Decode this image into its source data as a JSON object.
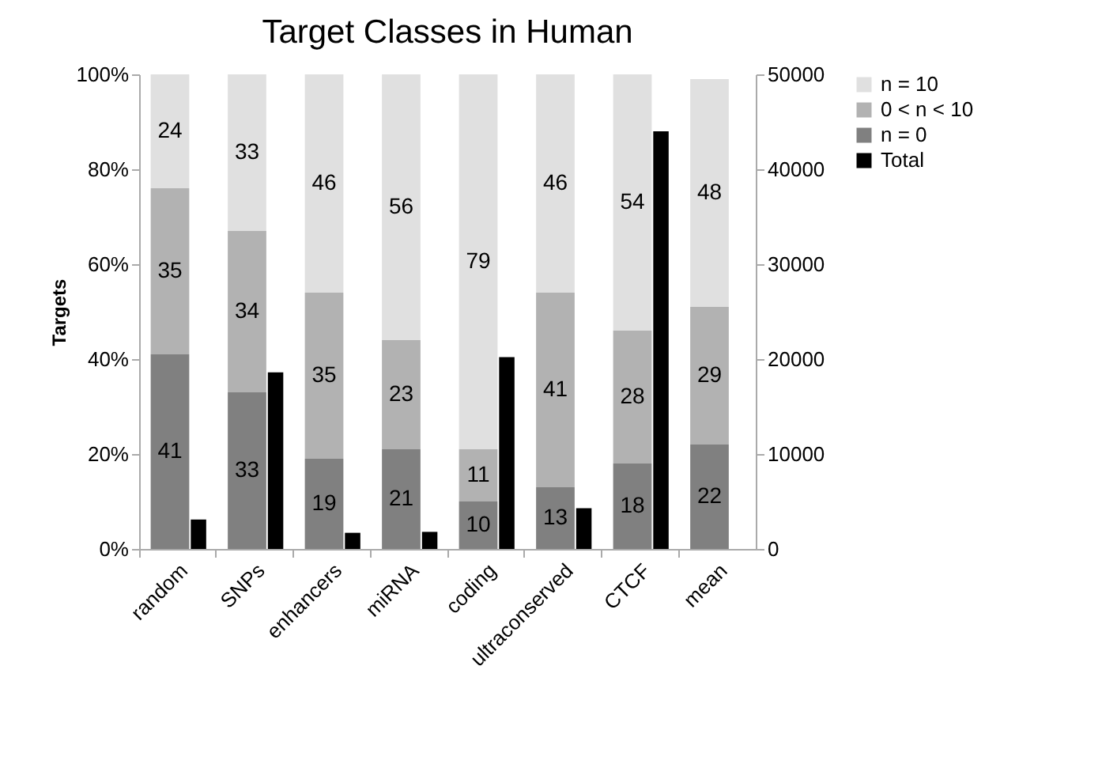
{
  "chart_data": {
    "type": "bar",
    "title": "Target Classes in Human",
    "ylabel": "Targets",
    "stacked": true,
    "legend": "right",
    "categories": [
      "random",
      "SNPs",
      "enhancers",
      "miRNA",
      "coding",
      "ultraconserved",
      "CTCF",
      "mean"
    ],
    "series": [
      {
        "name": "n = 0",
        "color": "#808080",
        "values": [
          41,
          33,
          19,
          21,
          10,
          13,
          18,
          22
        ],
        "value_labels": [
          "41",
          "33",
          "19",
          "21",
          "10",
          "13",
          "18",
          "22"
        ]
      },
      {
        "name": "0 <  n < 10",
        "color": "#b2b2b2",
        "values": [
          35,
          34,
          35,
          23,
          11,
          41,
          28,
          29
        ],
        "value_labels": [
          "35",
          "34",
          "35",
          "23",
          "11",
          "41",
          "28",
          "29"
        ]
      },
      {
        "name": "n = 10",
        "color": "#e0e0e0",
        "values": [
          24,
          33,
          46,
          56,
          79,
          46,
          54,
          48
        ],
        "value_labels": [
          "24",
          "33",
          "46",
          "56",
          "79",
          "46",
          "54",
          "48"
        ]
      },
      {
        "name": "Total",
        "color": "#000000",
        "axis": "y2",
        "values": [
          3100,
          18600,
          1700,
          1800,
          20200,
          4300,
          44000,
          null
        ]
      }
    ],
    "ylim": [
      0,
      100
    ],
    "yticks": [
      {
        "value": 0,
        "label": "0%"
      },
      {
        "value": 20,
        "label": "20%"
      },
      {
        "value": 40,
        "label": "40%"
      },
      {
        "value": 60,
        "label": "60%"
      },
      {
        "value": 80,
        "label": "80%"
      },
      {
        "value": 100,
        "label": "100%"
      }
    ],
    "y2lim": [
      0,
      50000
    ],
    "y2ticks": [
      0,
      10000,
      20000,
      30000,
      40000,
      50000
    ]
  }
}
